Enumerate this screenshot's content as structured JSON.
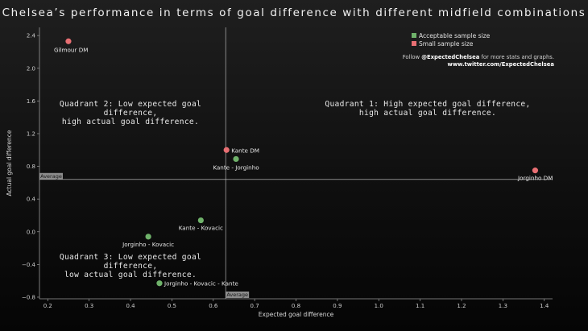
{
  "title": "Chelsea’s performance in terms of goal difference with different midfield combinations",
  "legend": [
    {
      "label": "Acceptable sample size",
      "color": "#6fb26a"
    },
    {
      "label": "Small sample size",
      "color": "#e86f73"
    }
  ],
  "follow": {
    "prefix": "Follow ",
    "handle": "@ExpectedChelsea",
    "suffix": " for more stats and graphs.",
    "url": "www.twitter.com/ExpectedChelsea"
  },
  "quadrants": {
    "q1": "Quadrant 1: High expected goal difference,\nhigh actual goal difference.",
    "q2": "Quadrant 2: Low expected goal difference,\nhigh actual goal difference.",
    "q3": "Quadrant 3: Low expected goal difference,\nlow actual goal difference."
  },
  "chart_data": {
    "type": "scatter",
    "title": "Chelsea’s performance in terms of goal difference with different midfield combinations",
    "xlabel": "Expected goal difference",
    "ylabel": "Actual goal difference",
    "xlim": [
      0.18,
      1.42
    ],
    "ylim": [
      -0.82,
      2.5
    ],
    "xticks": [
      0.2,
      0.3,
      0.4,
      0.5,
      0.6,
      0.7,
      0.8,
      0.9,
      1.0,
      1.1,
      1.2,
      1.3,
      1.4
    ],
    "xtick_labels": [
      "0.2",
      "0.3",
      "0.4",
      "0.5",
      "0.6",
      "0.7",
      "0.8",
      "0.9",
      "1.0",
      "1.1",
      "1.2",
      "1.3",
      "1.4"
    ],
    "yticks": [
      -0.8,
      -0.4,
      0.0,
      0.4,
      0.8,
      1.2,
      1.6,
      2.0,
      2.4
    ],
    "ytick_labels": [
      "−0.8",
      "−0.4",
      "0.0",
      "0.4",
      "0.8",
      "1.2",
      "1.6",
      "2.0",
      "2.4"
    ],
    "average_x": 0.63,
    "average_y": 0.64,
    "average_label": "Average",
    "points": [
      {
        "label": "Gilmour DM",
        "x": 0.25,
        "y": 2.33,
        "sample": "small"
      },
      {
        "label": "Kante DM",
        "x": 0.632,
        "y": 1.0,
        "sample": "small"
      },
      {
        "label": "Kante - Jorginho",
        "x": 0.655,
        "y": 0.89,
        "sample": "acceptable"
      },
      {
        "label": "Jorginho DM",
        "x": 1.378,
        "y": 0.75,
        "sample": "small"
      },
      {
        "label": "Kante - Kovacic",
        "x": 0.57,
        "y": 0.14,
        "sample": "acceptable"
      },
      {
        "label": "Jorginho - Kovacic",
        "x": 0.443,
        "y": -0.06,
        "sample": "acceptable"
      },
      {
        "label": "Jorginho - Kovacic - Kante",
        "x": 0.47,
        "y": -0.63,
        "sample": "acceptable"
      }
    ]
  }
}
